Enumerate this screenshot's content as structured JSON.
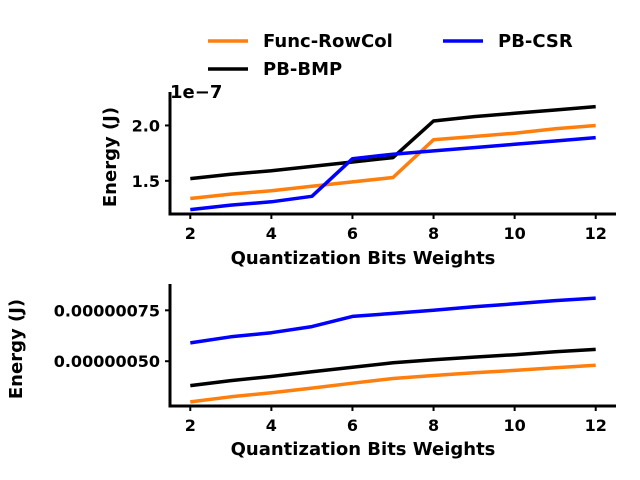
{
  "chart_data": {
    "type": "line",
    "x": [
      2,
      3,
      4,
      5,
      6,
      7,
      8,
      9,
      10,
      11,
      12
    ],
    "legend": {
      "placement": "top",
      "entries": [
        {
          "label": "Func-RowCol",
          "color": "#ff7f0e"
        },
        {
          "label": "PB-BMP",
          "color": "#000000"
        },
        {
          "label": "PB-CSR",
          "color": "#0000ff"
        }
      ]
    },
    "panels": [
      {
        "xlabel": "Quantization Bits Weights",
        "ylabel": "Energy (J)",
        "offset_text": "1e−7",
        "xticks": [
          2,
          4,
          6,
          8,
          10,
          12
        ],
        "xlim": [
          1.5,
          12.5
        ],
        "yticks": [
          1.5,
          2.0
        ],
        "ytick_labels": [
          "1.5",
          "2.0"
        ],
        "ylim": [
          1.2,
          2.23
        ],
        "series": [
          {
            "name": "Func-RowCol",
            "color": "#ff7f0e",
            "values": [
              1.34,
              1.38,
              1.41,
              1.45,
              1.49,
              1.53,
              1.87,
              1.9,
              1.93,
              1.97,
              2.0
            ]
          },
          {
            "name": "PB-BMP",
            "color": "#000000",
            "values": [
              1.52,
              1.56,
              1.59,
              1.63,
              1.67,
              1.71,
              2.04,
              2.08,
              2.11,
              2.14,
              2.17
            ]
          },
          {
            "name": "PB-CSR",
            "color": "#0000ff",
            "values": [
              1.24,
              1.28,
              1.31,
              1.36,
              1.7,
              1.74,
              1.77,
              1.8,
              1.83,
              1.86,
              1.89
            ]
          }
        ]
      },
      {
        "xlabel": "Quantization Bits Weights",
        "ylabel": "Energy (J)",
        "xticks": [
          2,
          4,
          6,
          8,
          10,
          12
        ],
        "xlim": [
          1.5,
          12.5
        ],
        "yticks": [
          5e-07,
          7.5e-07
        ],
        "ytick_labels": [
          "0.00000050",
          "0.00000075"
        ],
        "ylim": [
          2.8e-07,
          8.4e-07
        ],
        "series": [
          {
            "name": "Func-RowCol",
            "color": "#ff7f0e",
            "values": [
              3e-07,
              3.25e-07,
              3.45e-07,
              3.68e-07,
              3.92e-07,
              4.15e-07,
              4.3e-07,
              4.43e-07,
              4.55e-07,
              4.68e-07,
              4.8e-07
            ]
          },
          {
            "name": "PB-BMP",
            "color": "#000000",
            "values": [
              3.8e-07,
              4.05e-07,
              4.25e-07,
              4.48e-07,
              4.7e-07,
              4.92e-07,
              5.07e-07,
              5.2e-07,
              5.32e-07,
              5.46e-07,
              5.58e-07
            ]
          },
          {
            "name": "PB-CSR",
            "color": "#0000ff",
            "values": [
              5.9e-07,
              6.2e-07,
              6.4e-07,
              6.7e-07,
              7.2e-07,
              7.35e-07,
              7.5e-07,
              7.68e-07,
              7.82e-07,
              7.98e-07,
              8.1e-07
            ]
          }
        ]
      }
    ]
  }
}
